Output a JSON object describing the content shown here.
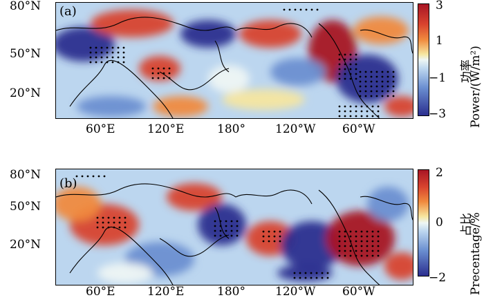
{
  "panels": [
    {
      "label": "(a)",
      "y_ticks": [
        "80°N",
        "50°N",
        "20°N"
      ],
      "x_ticks": [
        "60°E",
        "120°E",
        "180°",
        "120°W",
        "60°W"
      ],
      "colorbar": {
        "ticks": [
          "3",
          "1",
          "−1",
          "−3"
        ],
        "title_cn": "功率",
        "title_en": "Power/(W/m²)"
      }
    },
    {
      "label": "(b)",
      "y_ticks": [
        "80°N",
        "50°N",
        "20°N"
      ],
      "x_ticks": [
        "60°E",
        "120°E",
        "180°",
        "120°W",
        "60°W"
      ],
      "colorbar": {
        "ticks": [
          "2",
          "0",
          "−2"
        ],
        "title_cn": "占比",
        "title_en": "Precentage/%"
      }
    }
  ],
  "colors": {
    "dark_blue": "#2b2e8f",
    "mid_blue": "#6b8fd1",
    "light_blue": "#bcd6ef",
    "pale": "#eef6f4",
    "pale_yellow": "#f6e6a0",
    "orange": "#f08a3e",
    "red": "#d8432e",
    "dark_red": "#a81625"
  },
  "chart_data": [
    {
      "type": "heatmap",
      "title": "",
      "xlabel": "",
      "ylabel": "",
      "x_ticks": [
        "60°E",
        "120°E",
        "180°",
        "120°W",
        "60°W"
      ],
      "y_ticks": [
        "80°N",
        "50°N",
        "20°N"
      ],
      "colorbar_range": [
        -3,
        3
      ],
      "colorbar_ticks": [
        3,
        1,
        -1,
        -3
      ],
      "colorbar_label": "功率 Power/(W/m²)",
      "significance_stippling": true
    },
    {
      "type": "heatmap",
      "title": "",
      "xlabel": "",
      "ylabel": "",
      "x_ticks": [
        "60°E",
        "120°E",
        "180°",
        "120°W",
        "60°W"
      ],
      "y_ticks": [
        "80°N",
        "50°N",
        "20°N"
      ],
      "colorbar_range": [
        -2,
        2
      ],
      "colorbar_ticks": [
        2,
        0,
        -2
      ],
      "colorbar_label": "占比 Precentage/%",
      "significance_stippling": true
    }
  ]
}
